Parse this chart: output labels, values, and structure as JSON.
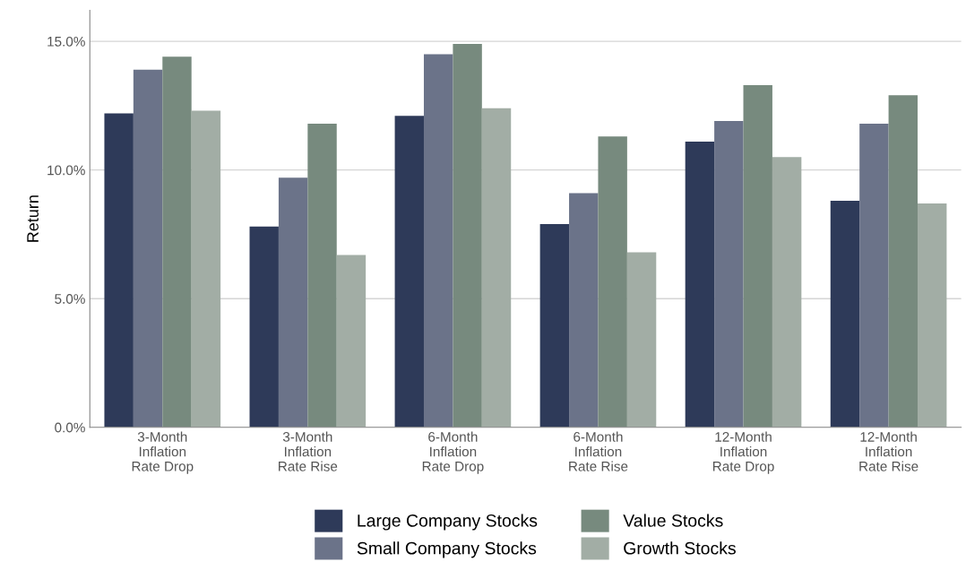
{
  "chart_data": {
    "type": "bar",
    "ylabel": "Return",
    "categories": [
      "3-Month\nInflation\nRate Drop",
      "3-Month\nInflation\nRate Rise",
      "6-Month\nInflation\nRate Drop",
      "6-Month\nInflation\nRate Rise",
      "12-Month\nInflation\nRate Drop",
      "12-Month\nInflation\nRate Rise"
    ],
    "series": [
      {
        "name": "Large Company Stocks",
        "color": "#2e3a59",
        "values": [
          12.2,
          7.8,
          12.1,
          7.9,
          11.1,
          8.8
        ]
      },
      {
        "name": "Small Company Stocks",
        "color": "#6b7389",
        "values": [
          13.9,
          9.7,
          14.5,
          9.1,
          11.9,
          11.8
        ]
      },
      {
        "name": "Value Stocks",
        "color": "#778a7e",
        "values": [
          14.4,
          11.8,
          14.9,
          11.3,
          13.3,
          12.9
        ]
      },
      {
        "name": "Growth Stocks",
        "color": "#a2ada5",
        "values": [
          12.3,
          6.7,
          12.4,
          6.8,
          10.5,
          8.7
        ]
      }
    ],
    "ylim": [
      0,
      16.2
    ],
    "yticks": [
      {
        "value": 0,
        "label": "0.0%"
      },
      {
        "value": 5,
        "label": "5.0%"
      },
      {
        "value": 10,
        "label": "10.0%"
      },
      {
        "value": 15,
        "label": "15.0%"
      }
    ],
    "grid": "y",
    "legend": "bottom"
  }
}
